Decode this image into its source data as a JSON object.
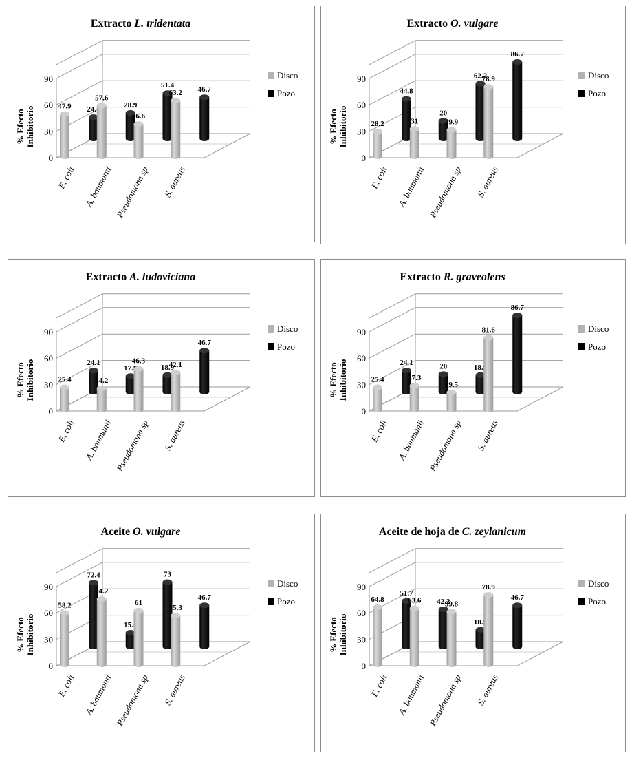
{
  "series_names": [
    "Disco",
    "Pozo"
  ],
  "y_axis_label": [
    "% Efecto",
    "Inhibitorio"
  ],
  "y_ticks": [
    "0",
    "30",
    "60",
    "90"
  ],
  "colors": {
    "disco": "#b3b3b3",
    "pozo": "#000000"
  },
  "chart_data": [
    {
      "type": "bar",
      "title": "Extracto",
      "title_italic": "L. tridentata",
      "categories": [
        "E. coli",
        "A. baumanii",
        "Pseudomona sp",
        "S. aureus"
      ],
      "series": [
        {
          "name": "Disco",
          "values": [
            47.9,
            57.6,
            36.6,
            63.2
          ]
        },
        {
          "name": "Pozo",
          "values": [
            24.1,
            28.9,
            51.4,
            46.7
          ]
        }
      ],
      "ylim": [
        0,
        90
      ],
      "legend": "right"
    },
    {
      "type": "bar",
      "title": "Extracto",
      "title_italic": "O. vulgare",
      "categories": [
        "E. coli",
        "A. baumanii",
        "Pseudomona sp",
        "S. aureus"
      ],
      "series": [
        {
          "name": "Disco",
          "values": [
            28.2,
            31,
            29.9,
            78.9
          ]
        },
        {
          "name": "Pozo",
          "values": [
            44.8,
            20,
            62.2,
            86.7
          ]
        }
      ],
      "ylim": [
        0,
        90
      ],
      "legend": "right"
    },
    {
      "type": "bar",
      "title": "Extracto",
      "title_italic": "A. ludoviciana",
      "categories": [
        "E. coli",
        "A. baumanii",
        "Pseudomona sp",
        "S. aureus"
      ],
      "series": [
        {
          "name": "Disco",
          "values": [
            25.4,
            24.2,
            46.3,
            42.1
          ]
        },
        {
          "name": "Pozo",
          "values": [
            24.1,
            17.8,
            18.9,
            46.7
          ]
        }
      ],
      "ylim": [
        0,
        90
      ],
      "legend": "right"
    },
    {
      "type": "bar",
      "title": "Extracto",
      "title_italic": "R. graveolens",
      "categories": [
        "E. coli",
        "A. baumanii",
        "Pseudomona sp",
        "S. aureus"
      ],
      "series": [
        {
          "name": "Disco",
          "values": [
            25.4,
            27.3,
            19.5,
            81.6
          ]
        },
        {
          "name": "Pozo",
          "values": [
            24.1,
            20,
            18.9,
            86.7
          ]
        }
      ],
      "ylim": [
        0,
        90
      ],
      "legend": "right"
    },
    {
      "type": "bar",
      "title": "Aceite",
      "title_italic": "O. vulgare",
      "categories": [
        "E. coli",
        "A. baumanii",
        "Pseudomona sp",
        "S. aureus"
      ],
      "series": [
        {
          "name": "Disco",
          "values": [
            58.2,
            74.2,
            61,
            55.3
          ]
        },
        {
          "name": "Pozo",
          "values": [
            72.4,
            15.6,
            73,
            46.7
          ]
        }
      ],
      "ylim": [
        0,
        90
      ],
      "legend": "right"
    },
    {
      "type": "bar",
      "title": "Aceite de hoja de",
      "title_italic": "C. zeylanicum",
      "categories": [
        "E. coli",
        "A. baumanii",
        "Pseudomona sp",
        "S. aureus"
      ],
      "series": [
        {
          "name": "Disco",
          "values": [
            64.8,
            63.6,
            59.8,
            78.9
          ]
        },
        {
          "name": "Pozo",
          "values": [
            51.7,
            42.2,
            18.9,
            46.7
          ]
        }
      ],
      "ylim": [
        0,
        90
      ],
      "legend": "right"
    }
  ]
}
